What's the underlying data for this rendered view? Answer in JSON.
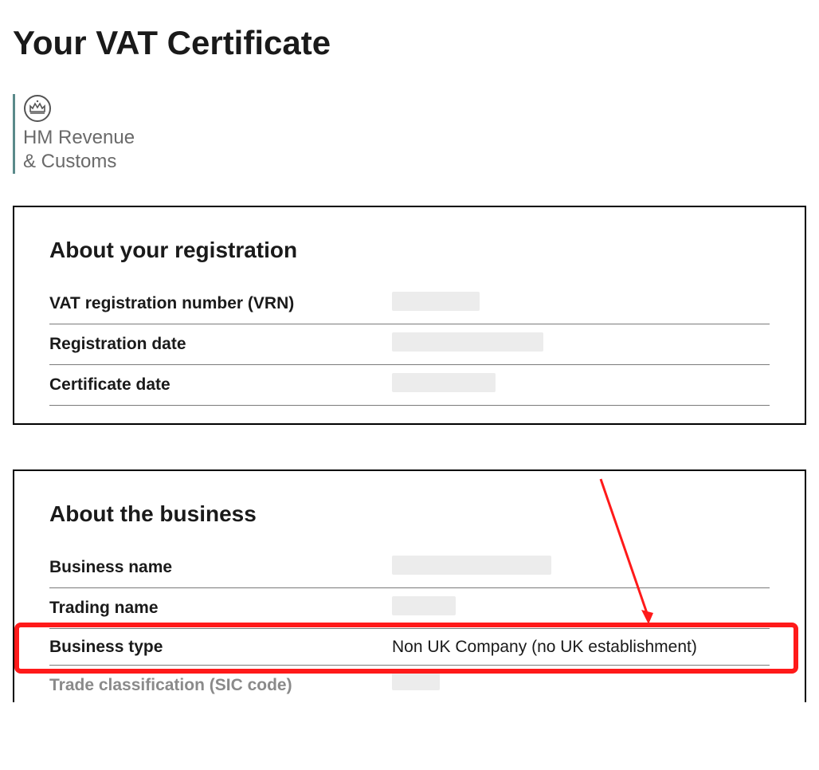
{
  "page": {
    "title": "Your VAT Certificate"
  },
  "org": {
    "line1": "HM Revenue",
    "line2": "& Customs"
  },
  "registration": {
    "title": "About your registration",
    "rows": [
      {
        "label": "VAT registration number (VRN)",
        "value": "",
        "redacted": true,
        "redactWidth": 110
      },
      {
        "label": "Registration date",
        "value": "",
        "redacted": true,
        "redactWidth": 190
      },
      {
        "label": "Certificate date",
        "value": "",
        "redacted": true,
        "redactWidth": 130
      }
    ]
  },
  "business": {
    "title": "About the business",
    "rows": [
      {
        "label": "Business name",
        "value": "",
        "redacted": true,
        "redactWidth": 200
      },
      {
        "label": "Trading name",
        "value": "",
        "redacted": true,
        "redactWidth": 80
      },
      {
        "label": "Business type",
        "value": "Non UK Company (no UK establishment)",
        "redacted": false,
        "highlighted": true
      },
      {
        "label": "Trade classification (SIC code)",
        "value": "",
        "redacted": true,
        "redactWidth": 60,
        "cutoff": true
      }
    ]
  },
  "annotation": {
    "highlight_color": "#ff1a1a",
    "arrow_color": "#ff1a1a"
  }
}
